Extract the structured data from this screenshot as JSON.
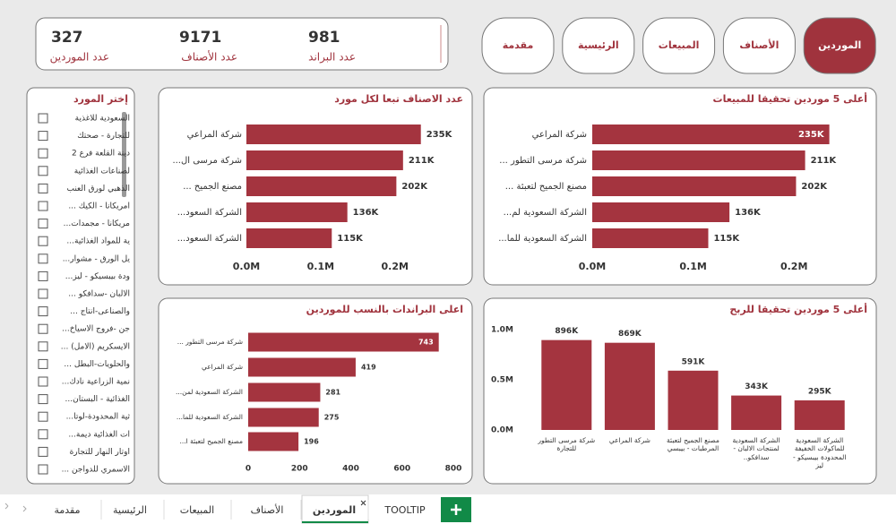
{
  "kpis": [
    {
      "value": 327,
      "label": "عدد الموردين"
    },
    {
      "value": 9171,
      "label": "عدد الأصناف"
    },
    {
      "value": 981,
      "label": "عدد البراند"
    }
  ],
  "nav": [
    "مقدمة",
    "الرئيسية",
    "المبيعات",
    "الأصناف",
    "الموردين"
  ],
  "slicer": {
    "title": "إختر المورد",
    "items": [
      "السعودية للاغذية",
      "للتجارة - صحتك",
      "دينة القلعة فرع 2",
      "لصناعات الغذائية",
      "الذهبي لورق العنب",
      "... امريكانا - الكيك",
      "...مريكانا - مجمدات",
      "...ية للمواد الغذائية",
      "...يل الورق - مشوار",
      "...ودة بيبسيكو - ليز",
      "... الالبان -سدافكو",
      "... والصناعى-انتاج",
      "...جن -فروج الاسياخ",
      "... الايسكريم (الامل)",
      "... والحلويات-البطل",
      "...نمية الزراعية نادك",
      "...الغذائية - البستان",
      "...ثية المحدودة-لوتا",
      "...ات الغذائية ديمة",
      "اوتار النهار للتجارة",
      "... الاسمري للدواجن"
    ]
  },
  "tabs": [
    "مقدمة",
    "الرئيسية",
    "المبيعات",
    "الأصناف",
    "الموردين",
    "TOOLTIP"
  ],
  "chart_data": [
    {
      "type": "barh",
      "title": "عدد الاصناف تبعا لكل مورد",
      "color": "#a4343f",
      "categories": [
        "شركة المراعي",
        "...شركة مرسى ال",
        "... مصنع الجميح",
        "...الشركة السعود",
        "...الشركة السعود"
      ],
      "values": [
        235000,
        211000,
        202000,
        136000,
        115000
      ],
      "value_labels": [
        "235K",
        "211K",
        "202K",
        "136K",
        "115K"
      ],
      "xlim": [
        0,
        280000
      ],
      "xticks": [
        {
          "value": 0,
          "label": "0.0M"
        },
        {
          "value": 100000,
          "label": "0.1M"
        },
        {
          "value": 200000,
          "label": "0.2M"
        }
      ]
    },
    {
      "type": "barh",
      "title": "أعلى 5 موردين تحقيقا للمبيعات",
      "color": "#a4343f",
      "categories": [
        "شركة المراعي",
        "... شركة مرسى التطور",
        "... مصنع الجميح لتعبئة",
        "...الشركة السعودية لم",
        "...الشركة السعودية للما"
      ],
      "values": [
        235000,
        211000,
        202000,
        136000,
        115000
      ],
      "value_labels": [
        "235K",
        "211K",
        "202K",
        "136K",
        "115K"
      ],
      "xlim": [
        0,
        270000
      ],
      "xticks": [
        {
          "value": 0,
          "label": "0.0M"
        },
        {
          "value": 100000,
          "label": "0.1M"
        },
        {
          "value": 200000,
          "label": "0.2M"
        }
      ]
    },
    {
      "type": "barh",
      "title": "اعلى البراندات بالنسب للموردين",
      "color": "#a4343f",
      "categories": [
        "... شركة مرسى التطور",
        "شركة المراعي",
        "...الشركة السعودية لمن",
        "...الشركة السعودية للما",
        "...مصنع الجميح لتعبئة ا"
      ],
      "values": [
        743,
        419,
        281,
        275,
        196
      ],
      "xlim": [
        0,
        800
      ],
      "xticks": [
        0,
        200,
        400,
        600,
        800
      ]
    },
    {
      "type": "bar",
      "title": "أعلى 5 موردين تحقيقا للربح",
      "color": "#a4343f",
      "categories": [
        "شركة مرسى التطور للتجارة",
        "شركة المراعي",
        "مصنع الجميح لتعبئة المرطبات - بيبسي",
        "الشركة السعودية لمنتجات الالبان - سدافكو..",
        "الشركة السعودية للماكولات الخفيفة المحدودة بيبسيكو - ليز"
      ],
      "values": [
        896000,
        869000,
        591000,
        343000,
        295000
      ],
      "value_labels": [
        "896K",
        "869K",
        "591K",
        "343K",
        "295K"
      ],
      "ylim": [
        0,
        1000000
      ],
      "yticks": [
        {
          "value": 0,
          "label": "0.0M"
        },
        {
          "value": 500000,
          "label": "0.5M"
        },
        {
          "value": 1000000,
          "label": "1.0M"
        }
      ]
    }
  ]
}
